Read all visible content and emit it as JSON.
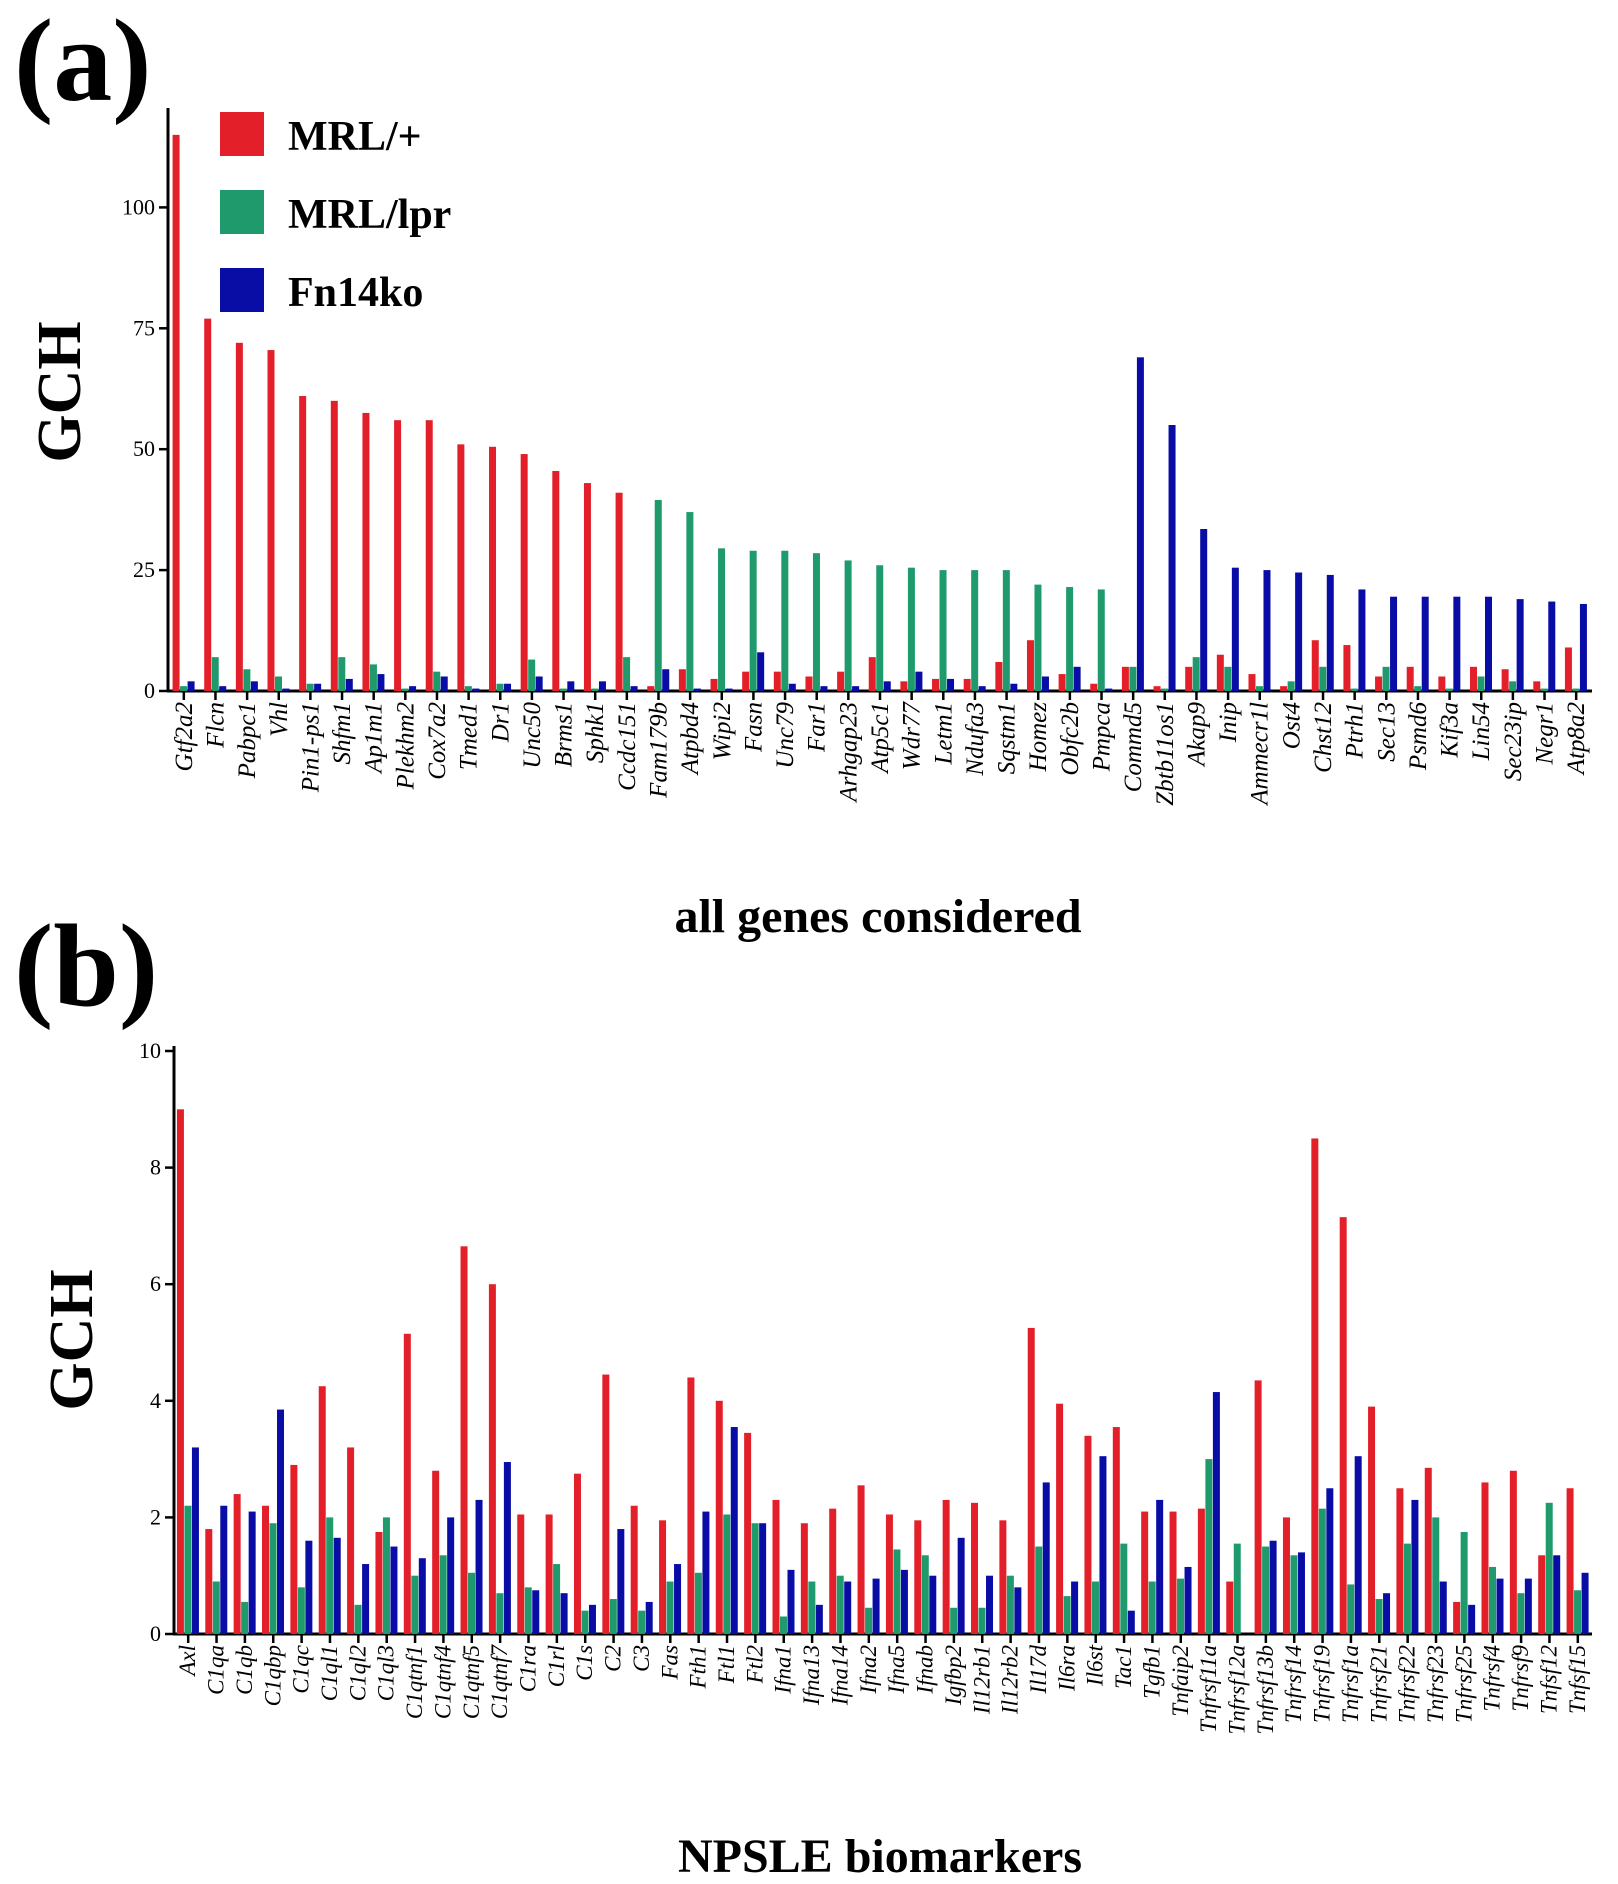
{
  "colors": {
    "MRL/+": "#e3202a",
    "MRL/lpr": "#1f9a6c",
    "Fn14ko": "#0a0ca6"
  },
  "legend": [
    "MRL/+",
    "MRL/lpr",
    "Fn14ko"
  ],
  "chart_data": [
    {
      "panel": "(a)",
      "type": "bar",
      "ylabel": "GCH",
      "xlabel": "all genes considered",
      "ylim": [
        0,
        120
      ],
      "yticks": [
        0,
        25,
        50,
        75,
        100
      ],
      "legend_position": "top-left",
      "categories": [
        "Gtf2a2",
        "Flcn",
        "Pabpc1",
        "Vhl",
        "Pin1-ps1",
        "Shfm1",
        "Ap1m1",
        "Plekhm2",
        "Cox7a2",
        "Tmed1",
        "Dr1",
        "Unc50",
        "Brms1",
        "Sphk1",
        "Ccdc151",
        "Fam179b",
        "Atpbd4",
        "Wipi2",
        "Fasn",
        "Unc79",
        "Far1",
        "Arhgap23",
        "Atp5c1",
        "Wdr77",
        "Letm1",
        "Ndufa3",
        "Sqstm1",
        "Homez",
        "Obfc2b",
        "Pmpca",
        "Commd5",
        "Zbtb11os1",
        "Akap9",
        "Inip",
        "Ammecr1l",
        "Ost4",
        "Chst12",
        "Ptrh1",
        "Sec13",
        "Psmd6",
        "Kif3a",
        "Lin54",
        "Sec23ip",
        "Negr1",
        "Atp8a2"
      ],
      "series": [
        {
          "name": "MRL/+",
          "values": [
            115,
            77,
            72,
            70.5,
            61,
            60,
            57.5,
            56,
            56,
            51,
            50.5,
            49,
            45.5,
            43,
            41,
            1,
            4.5,
            2.5,
            4,
            4,
            3,
            4,
            7,
            2,
            2.5,
            2.5,
            6,
            10.5,
            3.5,
            1.5,
            5,
            1,
            5,
            7.5,
            3.5,
            1,
            10.5,
            9.5,
            3,
            5,
            3,
            5,
            4.5,
            2,
            9
          ]
        },
        {
          "name": "MRL/lpr",
          "values": [
            1,
            7,
            4.5,
            3,
            1.5,
            7,
            5.5,
            0.5,
            4,
            1,
            1.5,
            6.5,
            0.5,
            0.5,
            7,
            39.5,
            37,
            29.5,
            29,
            29,
            28.5,
            27,
            26,
            25.5,
            25,
            25,
            25,
            22,
            21.5,
            21,
            5,
            0.5,
            7,
            5,
            1,
            2,
            5,
            0.5,
            5,
            1,
            0.5,
            3,
            2,
            0.5,
            0.5
          ]
        },
        {
          "name": "Fn14ko",
          "values": [
            2,
            1,
            2,
            0.5,
            1.5,
            2.5,
            3.5,
            1,
            3,
            0.5,
            1.5,
            3,
            2,
            2,
            1,
            4.5,
            0.5,
            0.5,
            8,
            1.5,
            1,
            1,
            2,
            4,
            2.5,
            1,
            1.5,
            3,
            5,
            0.5,
            69,
            55,
            33.5,
            25.5,
            25,
            24.5,
            24,
            21,
            19.5,
            19.5,
            19.5,
            19.5,
            19,
            18.5,
            18
          ]
        }
      ]
    },
    {
      "panel": "(b)",
      "type": "bar",
      "ylabel": "GCH",
      "xlabel": "NPSLE biomarkers",
      "ylim": [
        0,
        10
      ],
      "yticks": [
        0,
        2,
        4,
        6,
        8,
        10
      ],
      "categories": [
        "Axl",
        "C1qa",
        "C1qb",
        "C1qbp",
        "C1qc",
        "C1ql1",
        "C1ql2",
        "C1ql3",
        "C1qtnf1",
        "C1qtnf4",
        "C1qtnf5",
        "C1qtnf7",
        "C1ra",
        "C1rl",
        "C1s",
        "C2",
        "C3",
        "Fas",
        "Fth1",
        "Ftl1",
        "Ftl2",
        "Ifna1",
        "Ifna13",
        "Ifna14",
        "Ifna2",
        "Ifna5",
        "Ifnab",
        "Igfbp2",
        "Il12rb1",
        "Il12rb2",
        "Il17d",
        "Il6ra",
        "Il6st",
        "Tac1",
        "Tgfb1",
        "Tnfaip2",
        "Tnfrsf11a",
        "Tnfrsf12a",
        "Tnfrsf13b",
        "Tnfrsf14",
        "Tnfrsf19",
        "Tnfrsf1a",
        "Tnfrsf21",
        "Tnfrsf22",
        "Tnfrsf23",
        "Tnfrsf25",
        "Tnfrsf4",
        "Tnfrsf9",
        "Tnfsf12",
        "Tnfsf15"
      ],
      "series": [
        {
          "name": "MRL/+",
          "values": [
            9.0,
            1.8,
            2.4,
            2.2,
            2.9,
            4.25,
            3.2,
            1.75,
            5.15,
            2.8,
            6.65,
            6.0,
            2.05,
            2.05,
            2.75,
            4.45,
            2.2,
            1.95,
            4.4,
            4.0,
            3.45,
            2.3,
            1.9,
            2.15,
            2.55,
            2.05,
            1.95,
            2.3,
            2.25,
            1.95,
            5.25,
            3.95,
            3.4,
            3.55,
            2.1,
            2.1,
            2.15,
            0.9,
            4.35,
            2.0,
            8.5,
            7.15,
            3.9,
            2.5,
            2.85,
            0.55,
            2.6,
            2.8,
            1.35,
            2.5
          ]
        },
        {
          "name": "MRL/lpr",
          "values": [
            2.2,
            0.9,
            0.55,
            1.9,
            0.8,
            2.0,
            0.5,
            2.0,
            1.0,
            1.35,
            1.05,
            0.7,
            0.8,
            1.2,
            0.4,
            0.6,
            0.4,
            0.9,
            1.05,
            2.05,
            1.9,
            0.3,
            0.9,
            1.0,
            0.45,
            1.45,
            1.35,
            0.45,
            0.45,
            1.0,
            1.5,
            0.65,
            0.9,
            1.55,
            0.9,
            0.95,
            3.0,
            1.55,
            1.5,
            1.35,
            2.15,
            0.85,
            0.6,
            1.55,
            2.0,
            1.75,
            1.15,
            0.7,
            2.25,
            0.75
          ]
        },
        {
          "name": "Fn14ko",
          "values": [
            3.2,
            2.2,
            2.1,
            3.85,
            1.6,
            1.65,
            1.2,
            1.5,
            1.3,
            2.0,
            2.3,
            2.95,
            0.75,
            0.7,
            0.5,
            1.8,
            0.55,
            1.2,
            2.1,
            3.55,
            1.9,
            1.1,
            0.5,
            0.9,
            0.95,
            1.1,
            1.0,
            1.65,
            1.0,
            0.8,
            2.6,
            0.9,
            3.05,
            0.4,
            2.3,
            1.15,
            4.15,
            0,
            1.6,
            1.4,
            2.5,
            3.05,
            0.7,
            2.3,
            0.9,
            0.5,
            0.95,
            0.95,
            1.35,
            1.05
          ]
        }
      ]
    }
  ]
}
